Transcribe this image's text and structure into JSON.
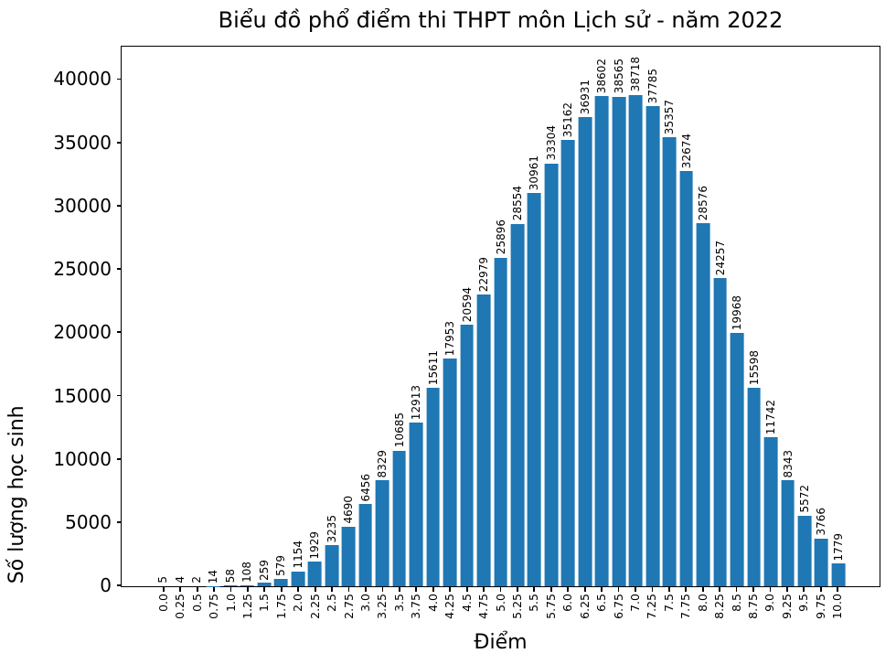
{
  "chart_data": {
    "type": "bar",
    "title": "Biểu đồ phổ điểm thi THPT môn Lịch sử - năm 2022",
    "xlabel": "Điểm",
    "ylabel": "Số lượng học sinh",
    "categories": [
      "0.0",
      "0.25",
      "0.5",
      "0.75",
      "1.0",
      "1.25",
      "1.5",
      "1.75",
      "2.0",
      "2.25",
      "2.5",
      "2.75",
      "3.0",
      "3.25",
      "3.5",
      "3.75",
      "4.0",
      "4.25",
      "4.5",
      "4.75",
      "5.0",
      "5.25",
      "5.5",
      "5.75",
      "6.0",
      "6.25",
      "6.5",
      "6.75",
      "7.0",
      "7.25",
      "7.5",
      "7.75",
      "8.0",
      "8.25",
      "8.5",
      "8.75",
      "9.0",
      "9.25",
      "9.5",
      "9.75",
      "10.0"
    ],
    "values": [
      5,
      4,
      2,
      14,
      58,
      108,
      259,
      579,
      1154,
      1929,
      3235,
      4690,
      6456,
      8329,
      10685,
      12913,
      15611,
      17953,
      20594,
      22979,
      25896,
      28554,
      30961,
      33304,
      35162,
      36931,
      38602,
      38565,
      38718,
      37785,
      35357,
      32674,
      28576,
      24257,
      19968,
      15598,
      11742,
      8343,
      5572,
      3766,
      1779
    ],
    "bar_labels_shown": true,
    "yticks": [
      0,
      5000,
      10000,
      15000,
      20000,
      25000,
      30000,
      35000,
      40000
    ],
    "ylim": [
      0,
      42500
    ],
    "xlim": [
      -2.44,
      42.44
    ],
    "bar_width_units": 0.8,
    "grid": false,
    "legend": null,
    "bar_color": "#1f77b4",
    "text_color": "#000000",
    "background_color": "#ffffff"
  }
}
